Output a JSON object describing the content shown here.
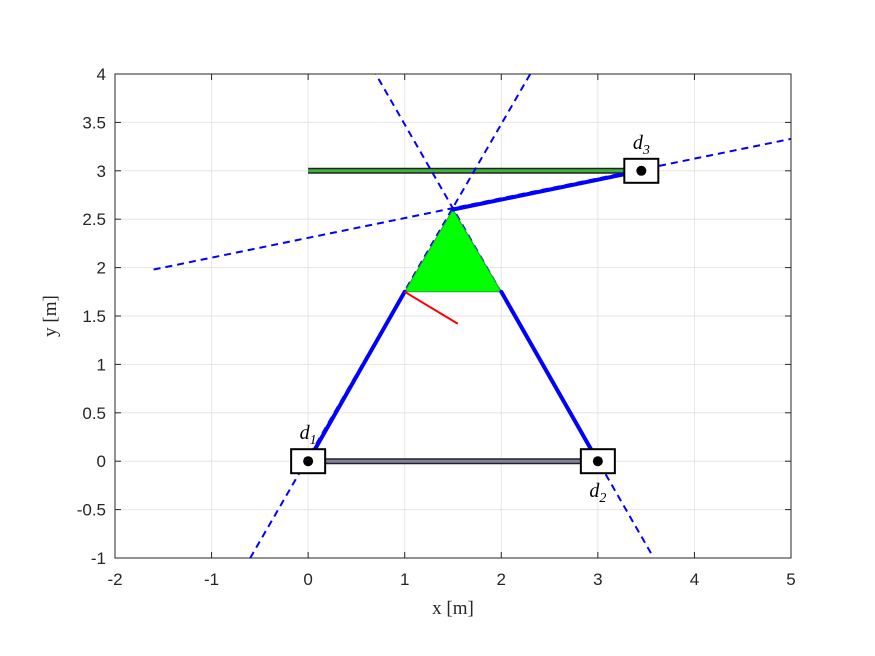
{
  "chart_data": {
    "type": "scatter",
    "xlabel": "x [m]",
    "ylabel": "y [m]",
    "xlim": [
      -2,
      5
    ],
    "ylim": [
      -1,
      4
    ],
    "grid": true,
    "xticks": [
      "-2",
      "-1",
      "0",
      "1",
      "2",
      "3",
      "4",
      "5"
    ],
    "yticks": [
      "-1",
      "-0.5",
      "0",
      "0.5",
      "1",
      "1.5",
      "2",
      "2.5",
      "3",
      "3.5",
      "4"
    ],
    "xtick_values": [
      -2,
      -1,
      0,
      1,
      2,
      3,
      4,
      5
    ],
    "ytick_values": [
      -1,
      -0.5,
      0,
      0.5,
      1,
      1.5,
      2,
      2.5,
      3,
      3.5,
      4
    ],
    "platform_triangle": {
      "vertices": [
        [
          1.0,
          1.75
        ],
        [
          2.0,
          1.75
        ],
        [
          1.5,
          2.6
        ]
      ],
      "color": "#00ff00"
    },
    "legs": [
      {
        "from": [
          0,
          0
        ],
        "to": [
          1.0,
          1.75
        ],
        "color": "#0000ff"
      },
      {
        "from": [
          3,
          0
        ],
        "to": [
          2.0,
          1.75
        ],
        "color": "#0000ff"
      },
      {
        "from": [
          3.45,
          3.0
        ],
        "to": [
          1.5,
          2.6
        ],
        "color": "#0000ff"
      }
    ],
    "dashed_lines": [
      {
        "from": [
          -0.6,
          -1.0
        ],
        "to": [
          2.3,
          4.0
        ],
        "color": "#0000ff"
      },
      {
        "from": [
          3.55,
          -0.95
        ],
        "to": [
          0.7,
          4.0
        ],
        "color": "#0000ff"
      },
      {
        "from": [
          -1.6,
          1.98
        ],
        "to": [
          5.0,
          3.33
        ],
        "color": "#0000ff"
      }
    ],
    "rails": [
      {
        "from": [
          0,
          0
        ],
        "to": [
          3,
          0
        ],
        "color": "#8080a0"
      },
      {
        "from": [
          0,
          3
        ],
        "to": [
          3.45,
          3
        ],
        "color": "#3cb43c"
      }
    ],
    "actuators": [
      {
        "x": 0,
        "y": 0,
        "label": "d",
        "sub": "1"
      },
      {
        "x": 3,
        "y": 0,
        "label": "d",
        "sub": "2"
      },
      {
        "x": 3.45,
        "y": 3.0,
        "label": "d",
        "sub": "3"
      }
    ],
    "orientation_arrow": {
      "from": [
        1.0,
        1.75
      ],
      "to": [
        1.55,
        1.42
      ],
      "color": "#ff0000"
    }
  }
}
